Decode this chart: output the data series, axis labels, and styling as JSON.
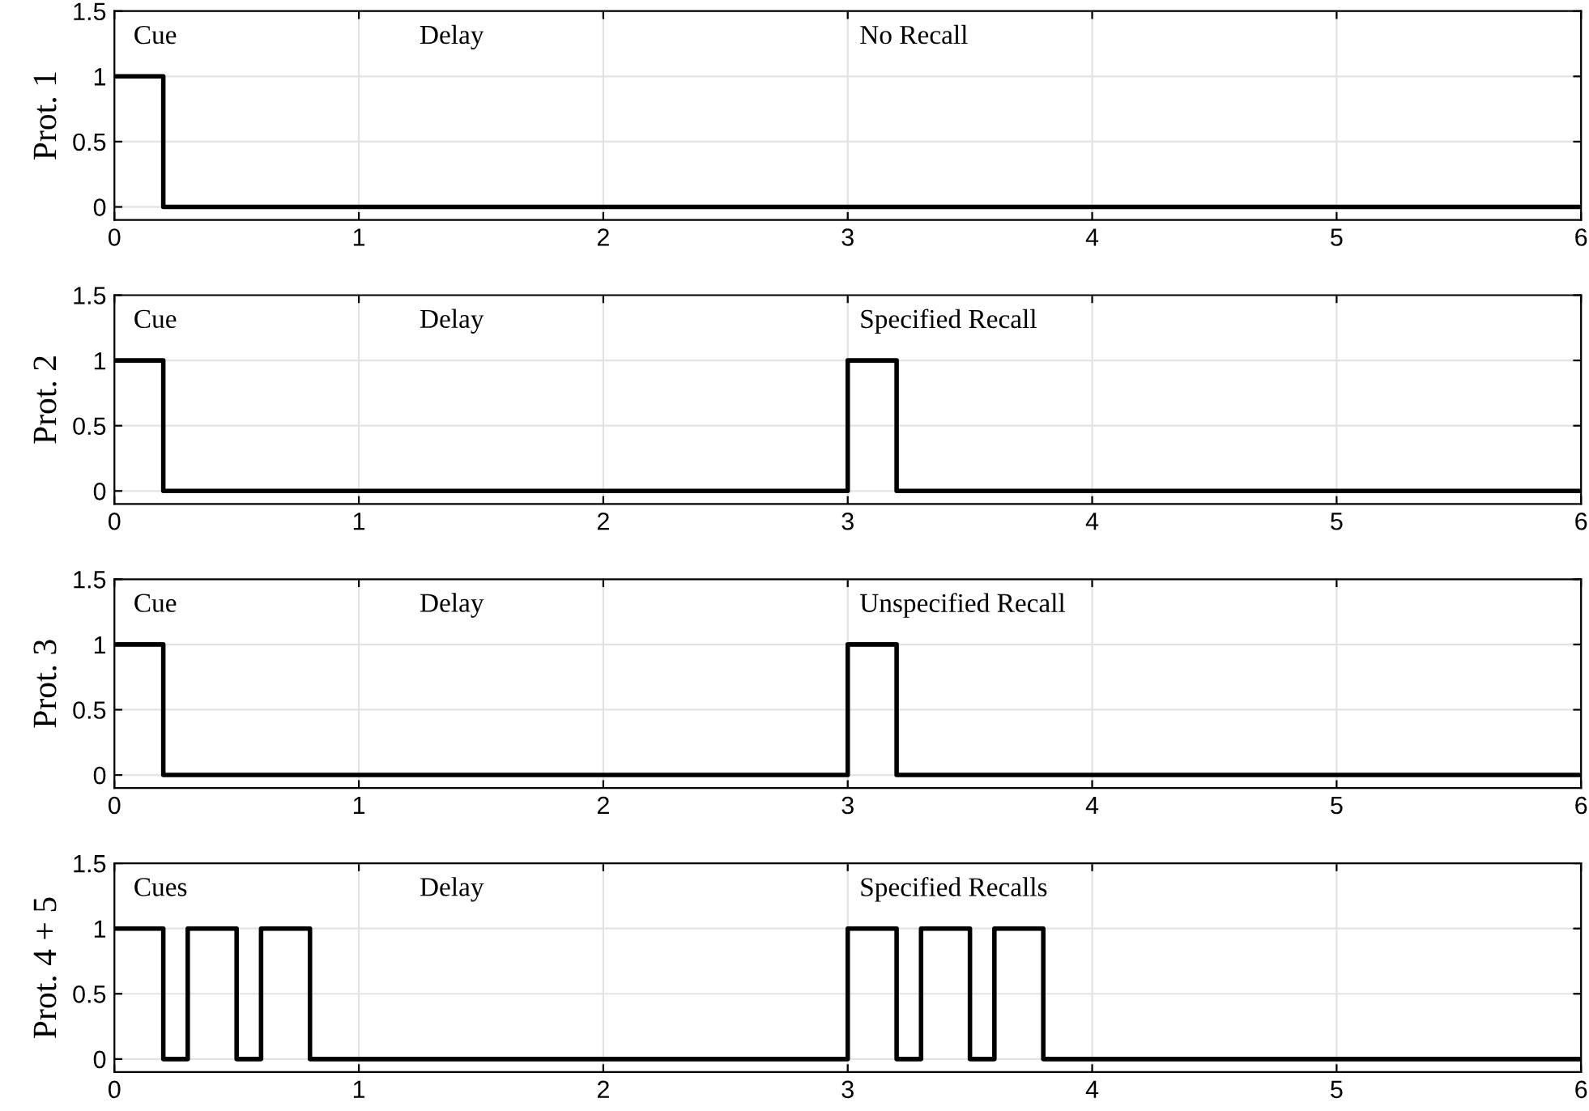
{
  "chart_data": [
    {
      "type": "line",
      "ylabel": "Prot. 1",
      "x": [
        0,
        0.2,
        0.2,
        6
      ],
      "series": [
        {
          "color": "#000000",
          "values": [
            1,
            1,
            0,
            0
          ]
        }
      ],
      "xlim": [
        0,
        6
      ],
      "ylim": [
        -0.1,
        1.5
      ],
      "xticks": [
        0,
        1,
        2,
        3,
        4,
        5,
        6
      ],
      "yticks": [
        0,
        0.5,
        1,
        1.5
      ],
      "grid": true,
      "annotations": [
        "Cue",
        "Delay",
        "No Recall"
      ]
    },
    {
      "type": "line",
      "ylabel": "Prot. 2",
      "x": [
        0,
        0.2,
        0.2,
        3,
        3,
        3.2,
        3.2,
        6
      ],
      "series": [
        {
          "color": "#000000",
          "values": [
            1,
            1,
            0,
            0,
            1,
            1,
            0,
            0
          ]
        }
      ],
      "xlim": [
        0,
        6
      ],
      "ylim": [
        -0.1,
        1.5
      ],
      "xticks": [
        0,
        1,
        2,
        3,
        4,
        5,
        6
      ],
      "yticks": [
        0,
        0.5,
        1,
        1.5
      ],
      "grid": true,
      "annotations": [
        "Cue",
        "Delay",
        "Specified Recall"
      ]
    },
    {
      "type": "line",
      "ylabel": "Prot. 3",
      "x": [
        0,
        0.2,
        0.2,
        3,
        3,
        3.2,
        3.2,
        6
      ],
      "series": [
        {
          "color": "#000000",
          "values": [
            1,
            1,
            0,
            0,
            1,
            1,
            0,
            0
          ]
        }
      ],
      "xlim": [
        0,
        6
      ],
      "ylim": [
        -0.1,
        1.5
      ],
      "xticks": [
        0,
        1,
        2,
        3,
        4,
        5,
        6
      ],
      "yticks": [
        0,
        0.5,
        1,
        1.5
      ],
      "grid": true,
      "annotations": [
        "Cue",
        "Delay",
        "Unspecified Recall"
      ]
    },
    {
      "type": "line",
      "ylabel": "Prot. 4 + 5",
      "x": [
        0,
        0.2,
        0.2,
        0.3,
        0.3,
        0.5,
        0.5,
        0.6,
        0.6,
        0.8,
        0.8,
        3,
        3,
        3.2,
        3.2,
        3.3,
        3.3,
        3.5,
        3.5,
        3.6,
        3.6,
        3.8,
        3.8,
        6
      ],
      "series": [
        {
          "color": "#000000",
          "values": [
            1,
            1,
            0,
            0,
            1,
            1,
            0,
            0,
            1,
            1,
            0,
            0,
            1,
            1,
            0,
            0,
            1,
            1,
            0,
            0,
            1,
            1,
            0,
            0
          ]
        }
      ],
      "xlim": [
        0,
        6
      ],
      "ylim": [
        -0.1,
        1.5
      ],
      "xticks": [
        0,
        1,
        2,
        3,
        4,
        5,
        6
      ],
      "yticks": [
        0,
        0.5,
        1,
        1.5
      ],
      "grid": true,
      "annotations": [
        "Cues",
        "Delay",
        "Specified Recalls"
      ]
    }
  ]
}
